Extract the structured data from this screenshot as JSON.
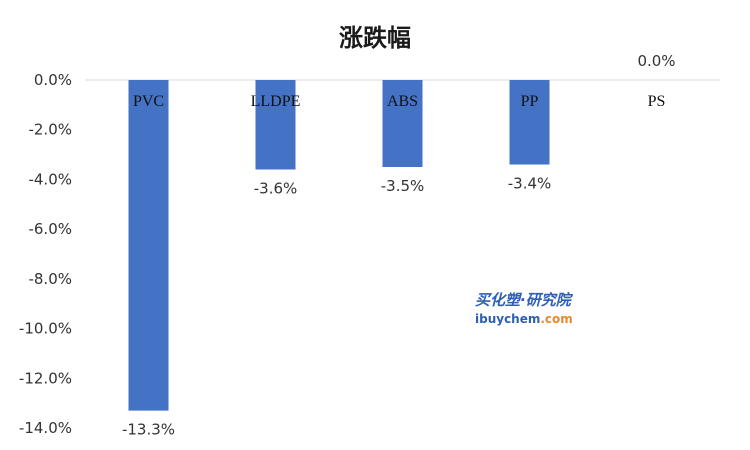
{
  "chart_data": {
    "type": "bar",
    "title": "涨跌幅",
    "categories": [
      "PVC",
      "LLDPE",
      "ABS",
      "PP",
      "PS"
    ],
    "values": [
      -13.3,
      -3.6,
      -3.5,
      -3.4,
      0.0
    ],
    "data_labels": [
      "-13.3%",
      "-3.6%",
      "-3.5%",
      "-3.4%",
      "0.0%"
    ],
    "yticks": [
      "0.0%",
      "-2.0%",
      "-4.0%",
      "-6.0%",
      "-8.0%",
      "-10.0%",
      "-12.0%",
      "-14.0%"
    ],
    "ytick_values": [
      0,
      -2,
      -4,
      -6,
      -8,
      -10,
      -12,
      -14
    ],
    "ylim": [
      -14,
      0
    ],
    "xlabel": "",
    "ylabel": "",
    "grid": false,
    "legend": "none",
    "bar_color": "#4472c4"
  },
  "watermark": {
    "brand_cn": "买化塑·研究院",
    "site_main": "ibuychem",
    "site_suffix": ".com",
    "color_primary": "#2e5fb6",
    "color_accent": "#e58a2e"
  }
}
